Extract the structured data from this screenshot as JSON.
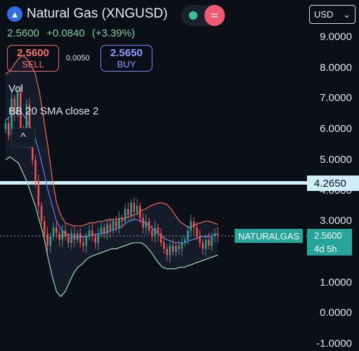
{
  "header": {
    "title": "Natural Gas (XNGUSD)",
    "symbol_icon": "flame-icon",
    "price": "2.5600",
    "change": "+0.0840",
    "change_pct": "(+3.39%)",
    "toggle_icon": "wave-icon"
  },
  "trade": {
    "sell_price": "2.5600",
    "sell_label": "SELL",
    "spread": "0.0050",
    "buy_price": "2.5650",
    "buy_label": "BUY"
  },
  "indicators": {
    "vol": "Vol",
    "bb": "BB 20 SMA close 2",
    "collapse_icon": "chevron-up-icon"
  },
  "currency": {
    "selected": "USD",
    "icon": "chevron-down-icon"
  },
  "axis": {
    "ticks": [
      "9.0000",
      "8.0000",
      "7.0000",
      "6.0000",
      "5.0000",
      "4.0000",
      "3.0000",
      "2.0000",
      "1.0000",
      "0.0000",
      "-1.0000"
    ]
  },
  "horizontal_line": {
    "value": "4.2650",
    "color": "#cfeef7"
  },
  "symbol_tag": "NATURALGAS",
  "price_tag": {
    "price": "2.5600",
    "countdown": "4d 5h"
  },
  "colors": {
    "up": "#26a69a",
    "down": "#ef5350",
    "bb_upper": "#f26b5b",
    "bb_mid": "#6f7df2",
    "bb_lower": "#9fe0b8",
    "background": "#0b0f17"
  },
  "chart_data": {
    "type": "candlestick",
    "ylim": [
      -1,
      9
    ],
    "horizontal_line": 4.265,
    "last_price": 2.56,
    "closes": [
      6.2,
      5.8,
      7.0,
      6.5,
      7.2,
      6.0,
      5.8,
      6.8,
      5.5,
      5.0,
      4.3,
      3.5,
      3.0,
      2.6,
      2.2,
      2.5,
      2.8,
      2.6,
      2.4,
      2.7,
      2.5,
      2.3,
      2.6,
      2.4,
      2.6,
      2.3,
      2.2,
      2.5,
      2.7,
      2.5,
      2.3,
      2.6,
      2.8,
      2.6,
      2.9,
      2.7,
      3.0,
      2.8,
      3.1,
      3.0,
      3.4,
      3.2,
      3.6,
      3.3,
      3.5,
      3.1,
      2.8,
      3.0,
      2.7,
      2.5,
      2.8,
      2.6,
      2.3,
      2.1,
      1.9,
      2.2,
      2.0,
      2.2,
      2.1,
      2.3,
      2.4,
      2.7,
      3.0,
      2.8,
      2.5,
      2.3,
      2.1,
      2.4,
      2.2,
      2.5,
      2.6,
      2.56
    ],
    "bb_upper": [
      7.8,
      7.9,
      8.1,
      8.3,
      8.4,
      8.3,
      8.1,
      7.8,
      7.2,
      6.3,
      5.4,
      4.4,
      3.6,
      3.2,
      2.95,
      2.9,
      2.85,
      2.85,
      2.85,
      2.9,
      2.95,
      2.95,
      3.0,
      3.0,
      3.05,
      3.05,
      3.05,
      3.1,
      3.1,
      3.15,
      3.2,
      3.25,
      3.35,
      3.4,
      3.5,
      3.55,
      3.6,
      3.6,
      3.55,
      3.4,
      3.2,
      3.0,
      2.9,
      2.8,
      2.85,
      2.9,
      2.95,
      3.0,
      3.0,
      2.95,
      2.9
    ],
    "bb_mid": [
      6.3,
      6.4,
      6.5,
      6.6,
      6.5,
      6.3,
      6.0,
      5.7,
      5.2,
      4.6,
      4.0,
      3.5,
      3.0,
      2.75,
      2.6,
      2.55,
      2.5,
      2.5,
      2.5,
      2.5,
      2.55,
      2.55,
      2.6,
      2.6,
      2.65,
      2.7,
      2.75,
      2.8,
      2.9,
      3.0,
      3.05,
      3.05,
      3.0,
      2.95,
      2.85,
      2.7,
      2.6,
      2.5,
      2.4,
      2.35,
      2.3,
      2.3,
      2.3,
      2.35,
      2.4,
      2.45,
      2.5,
      2.5,
      2.5,
      2.55,
      2.6
    ],
    "bb_lower": [
      5.0,
      5.1,
      5.0,
      4.9,
      4.6,
      4.3,
      3.9,
      3.5,
      3.0,
      2.5,
      1.8,
      1.2,
      0.7,
      0.55,
      0.7,
      1.0,
      1.3,
      1.5,
      1.6,
      1.75,
      1.85,
      1.9,
      1.95,
      2.0,
      2.05,
      2.1,
      2.1,
      2.15,
      2.2,
      2.25,
      2.3,
      2.3,
      2.3,
      2.2,
      2.05,
      1.85,
      1.65,
      1.5,
      1.45,
      1.45,
      1.45,
      1.5,
      1.5,
      1.55,
      1.6,
      1.65,
      1.7,
      1.75,
      1.8,
      1.85,
      1.9
    ]
  }
}
